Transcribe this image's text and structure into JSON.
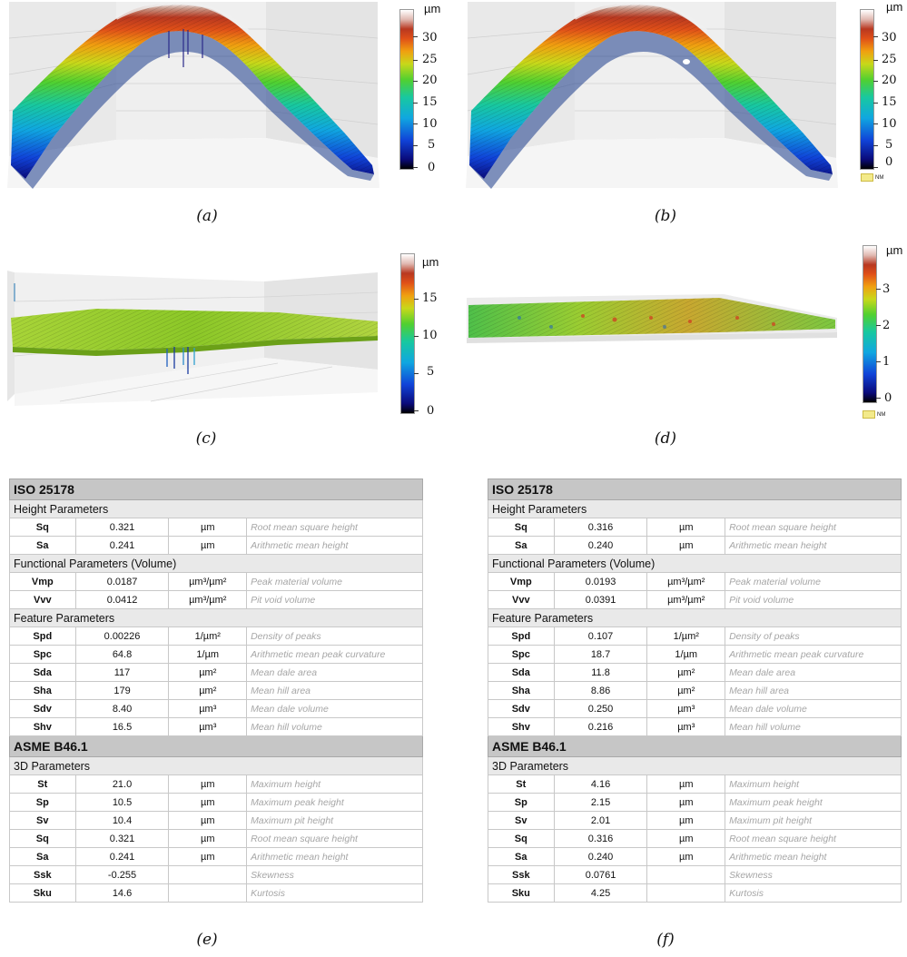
{
  "colors": {
    "colormap": [
      "#0a0a7a",
      "#1043d8",
      "#10a7e0",
      "#18c8a0",
      "#50d030",
      "#c8d81a",
      "#f0a010",
      "#e05018",
      "#b83820",
      "#c89888",
      "#f4f4f4"
    ],
    "flat_surface": "#9acd32",
    "table_header_bg": "#c6c6c6",
    "table_group_bg": "#e9e9e9",
    "desc_text": "#a6a6a6"
  },
  "panels": {
    "a": {
      "caption": "(a)",
      "unit": "µm",
      "ticks": [
        "30",
        "25",
        "20",
        "15",
        "10",
        "5",
        "0"
      ]
    },
    "b": {
      "caption": "(b)",
      "unit": "µm",
      "ticks": [
        "30",
        "25",
        "20",
        "15",
        "10",
        "5",
        "0"
      ],
      "nm_label": "NM"
    },
    "c": {
      "caption": "(c)",
      "unit": "µm",
      "ticks": [
        "15",
        "10",
        "5",
        "0"
      ]
    },
    "d": {
      "caption": "(d)",
      "unit": "µm",
      "ticks": [
        "3",
        "2",
        "1",
        "0"
      ],
      "nm_label": "NM"
    },
    "e": {
      "caption": "(e)"
    },
    "f": {
      "caption": "(f)"
    }
  },
  "tables": {
    "e": {
      "iso_title": "ISO 25178",
      "height_group": "Height Parameters",
      "height": [
        {
          "sym": "Sq",
          "val": "0.321",
          "unit": "µm",
          "desc": "Root mean square height"
        },
        {
          "sym": "Sa",
          "val": "0.241",
          "unit": "µm",
          "desc": "Arithmetic mean height"
        }
      ],
      "functional_group": "Functional Parameters (Volume)",
      "functional": [
        {
          "sym": "Vmp",
          "val": "0.0187",
          "unit": "µm³/µm²",
          "desc": "Peak material volume"
        },
        {
          "sym": "Vvv",
          "val": "0.0412",
          "unit": "µm³/µm²",
          "desc": "Pit void volume"
        }
      ],
      "feature_group": "Feature Parameters",
      "feature": [
        {
          "sym": "Spd",
          "val": "0.00226",
          "unit": "1/µm²",
          "desc": "Density of peaks"
        },
        {
          "sym": "Spc",
          "val": "64.8",
          "unit": "1/µm",
          "desc": "Arithmetic mean peak curvature"
        },
        {
          "sym": "Sda",
          "val": "117",
          "unit": "µm²",
          "desc": "Mean dale area"
        },
        {
          "sym": "Sha",
          "val": "179",
          "unit": "µm²",
          "desc": "Mean hill area"
        },
        {
          "sym": "Sdv",
          "val": "8.40",
          "unit": "µm³",
          "desc": "Mean dale volume"
        },
        {
          "sym": "Shv",
          "val": "16.5",
          "unit": "µm³",
          "desc": "Mean hill volume"
        }
      ],
      "asme_title": "ASME B46.1",
      "params3d_group": "3D Parameters",
      "params3d": [
        {
          "sym": "St",
          "val": "21.0",
          "unit": "µm",
          "desc": "Maximum height"
        },
        {
          "sym": "Sp",
          "val": "10.5",
          "unit": "µm",
          "desc": "Maximum peak height"
        },
        {
          "sym": "Sv",
          "val": "10.4",
          "unit": "µm",
          "desc": "Maximum pit height"
        },
        {
          "sym": "Sq",
          "val": "0.321",
          "unit": "µm",
          "desc": "Root mean square height"
        },
        {
          "sym": "Sa",
          "val": "0.241",
          "unit": "µm",
          "desc": "Arithmetic mean height"
        },
        {
          "sym": "Ssk",
          "val": "-0.255",
          "unit": "",
          "desc": "Skewness"
        },
        {
          "sym": "Sku",
          "val": "14.6",
          "unit": "",
          "desc": "Kurtosis"
        }
      ]
    },
    "f": {
      "iso_title": "ISO 25178",
      "height_group": "Height Parameters",
      "height": [
        {
          "sym": "Sq",
          "val": "0.316",
          "unit": "µm",
          "desc": "Root mean square height"
        },
        {
          "sym": "Sa",
          "val": "0.240",
          "unit": "µm",
          "desc": "Arithmetic mean height"
        }
      ],
      "functional_group": "Functional Parameters (Volume)",
      "functional": [
        {
          "sym": "Vmp",
          "val": "0.0193",
          "unit": "µm³/µm²",
          "desc": "Peak material volume"
        },
        {
          "sym": "Vvv",
          "val": "0.0391",
          "unit": "µm³/µm²",
          "desc": "Pit void volume"
        }
      ],
      "feature_group": "Feature Parameters",
      "feature": [
        {
          "sym": "Spd",
          "val": "0.107",
          "unit": "1/µm²",
          "desc": "Density of peaks"
        },
        {
          "sym": "Spc",
          "val": "18.7",
          "unit": "1/µm",
          "desc": "Arithmetic mean peak curvature"
        },
        {
          "sym": "Sda",
          "val": "11.8",
          "unit": "µm²",
          "desc": "Mean dale area"
        },
        {
          "sym": "Sha",
          "val": "8.86",
          "unit": "µm²",
          "desc": "Mean hill area"
        },
        {
          "sym": "Sdv",
          "val": "0.250",
          "unit": "µm³",
          "desc": "Mean dale volume"
        },
        {
          "sym": "Shv",
          "val": "0.216",
          "unit": "µm³",
          "desc": "Mean hill volume"
        }
      ],
      "asme_title": "ASME B46.1",
      "params3d_group": "3D Parameters",
      "params3d": [
        {
          "sym": "St",
          "val": "4.16",
          "unit": "µm",
          "desc": "Maximum height"
        },
        {
          "sym": "Sp",
          "val": "2.15",
          "unit": "µm",
          "desc": "Maximum peak height"
        },
        {
          "sym": "Sv",
          "val": "2.01",
          "unit": "µm",
          "desc": "Maximum pit height"
        },
        {
          "sym": "Sq",
          "val": "0.316",
          "unit": "µm",
          "desc": "Root mean square height"
        },
        {
          "sym": "Sa",
          "val": "0.240",
          "unit": "µm",
          "desc": "Arithmetic mean height"
        },
        {
          "sym": "Ssk",
          "val": "0.0761",
          "unit": "",
          "desc": "Skewness"
        },
        {
          "sym": "Sku",
          "val": "4.25",
          "unit": "",
          "desc": "Kurtosis"
        }
      ]
    }
  }
}
